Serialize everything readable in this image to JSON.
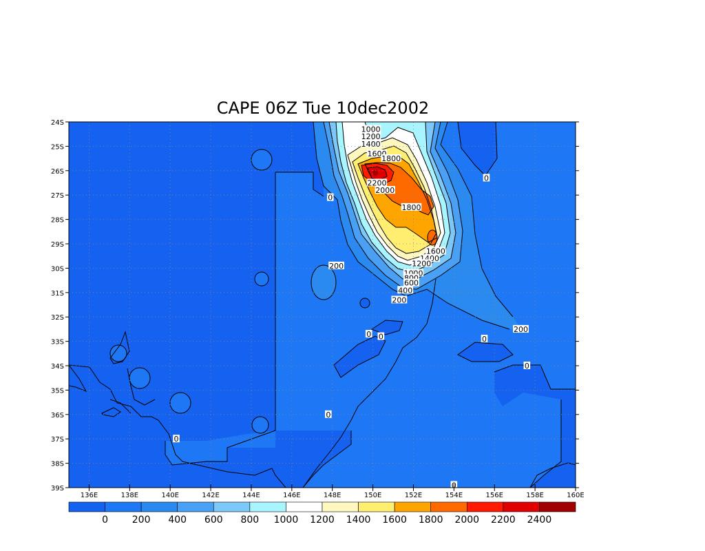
{
  "chart_data": {
    "type": "heatmap",
    "title": "CAPE 06Z Tue 10dec2002",
    "x_ticks": [
      "136E",
      "138E",
      "140E",
      "142E",
      "144E",
      "146E",
      "148E",
      "150E",
      "152E",
      "154E",
      "156E",
      "158E",
      "160E"
    ],
    "y_ticks": [
      "24S",
      "25S",
      "26S",
      "27S",
      "28S",
      "29S",
      "30S",
      "31S",
      "32S",
      "33S",
      "34S",
      "35S",
      "36S",
      "37S",
      "38S",
      "39S"
    ],
    "xlim": [
      135,
      160
    ],
    "ylim": [
      -39,
      -24
    ],
    "grid": true,
    "colorbar": {
      "labels": [
        "0",
        "200",
        "400",
        "600",
        "800",
        "1000",
        "1200",
        "1400",
        "1600",
        "1800",
        "2000",
        "2200",
        "2400"
      ],
      "colors": [
        "#1662f0",
        "#1e78f5",
        "#2a8af0",
        "#4aa0f5",
        "#7cc8f8",
        "#a8f5ff",
        "#ffffff",
        "#fff7c0",
        "#ffee70",
        "#ffa500",
        "#ff6a00",
        "#ff1a00",
        "#e00000",
        "#a00000"
      ]
    },
    "contour_labels": [
      {
        "text": "1000",
        "lon": 149.9,
        "lat": -24.3
      },
      {
        "text": "1200",
        "lon": 149.9,
        "lat": -24.6
      },
      {
        "text": "1400",
        "lon": 149.9,
        "lat": -24.9
      },
      {
        "text": "1600",
        "lon": 150.2,
        "lat": -25.3
      },
      {
        "text": "1800",
        "lon": 150.9,
        "lat": -25.5
      },
      {
        "text": "2200",
        "lon": 150.2,
        "lat": -26.5
      },
      {
        "text": "2000",
        "lon": 150.6,
        "lat": -26.8
      },
      {
        "text": "1800",
        "lon": 151.9,
        "lat": -27.5
      },
      {
        "text": "1600",
        "lon": 153.1,
        "lat": -29.3
      },
      {
        "text": "1400",
        "lon": 152.8,
        "lat": -29.6
      },
      {
        "text": "1200",
        "lon": 152.4,
        "lat": -29.8
      },
      {
        "text": "1000",
        "lon": 152.0,
        "lat": -30.2
      },
      {
        "text": "800",
        "lon": 151.9,
        "lat": -30.4
      },
      {
        "text": "600",
        "lon": 151.9,
        "lat": -30.6
      },
      {
        "text": "400",
        "lon": 151.6,
        "lat": -30.9
      },
      {
        "text": "200",
        "lon": 151.3,
        "lat": -31.3
      },
      {
        "text": "200",
        "lon": 148.2,
        "lat": -29.9
      },
      {
        "text": "0",
        "lon": 147.9,
        "lat": -27.1
      },
      {
        "text": "0",
        "lon": 155.6,
        "lat": -26.3
      },
      {
        "text": "200",
        "lon": 157.3,
        "lat": -32.5
      },
      {
        "text": "0",
        "lon": 149.8,
        "lat": -32.7
      },
      {
        "text": "0",
        "lon": 150.4,
        "lat": -32.8
      },
      {
        "text": "0",
        "lon": 155.5,
        "lat": -32.9
      },
      {
        "text": "0",
        "lon": 157.6,
        "lat": -34.0
      },
      {
        "text": "0",
        "lon": 147.8,
        "lat": -36.0
      },
      {
        "text": "0",
        "lon": 140.3,
        "lat": -37.0
      },
      {
        "text": "0",
        "lon": 154.0,
        "lat": -38.9
      }
    ]
  }
}
